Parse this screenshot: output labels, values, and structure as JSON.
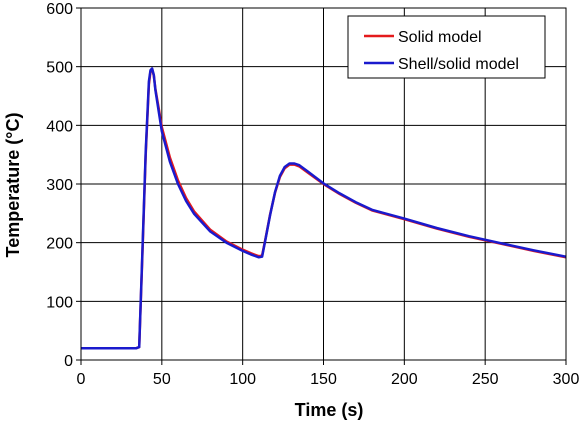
{
  "chart_data": {
    "type": "line",
    "title": "",
    "xlabel": "Time (s)",
    "ylabel": "Temperature (°C)",
    "xlim": [
      0,
      300
    ],
    "ylim": [
      0,
      600
    ],
    "x_ticks": [
      "0",
      "50",
      "100",
      "150",
      "200",
      "250",
      "300"
    ],
    "y_ticks": [
      "0",
      "100",
      "200",
      "300",
      "400",
      "500",
      "600"
    ],
    "grid": true,
    "legend_position": "top-right",
    "series": [
      {
        "name": "Solid model",
        "color": "#e41a1c",
        "x": [
          0,
          34,
          36,
          38,
          40,
          42,
          43,
          44,
          45,
          46,
          48,
          50,
          55,
          60,
          65,
          70,
          80,
          90,
          100,
          105,
          110,
          112,
          114,
          117,
          120,
          123,
          126,
          129,
          132,
          135,
          140,
          150,
          160,
          170,
          180,
          200,
          220,
          240,
          260,
          280,
          300
        ],
        "y": [
          20,
          20,
          22,
          180,
          350,
          470,
          492,
          496,
          485,
          462,
          430,
          397,
          345,
          306,
          276,
          253,
          222,
          202,
          188,
          182,
          177,
          178,
          205,
          248,
          285,
          312,
          327,
          333,
          333,
          330,
          320,
          300,
          283,
          268,
          255,
          240,
          224,
          210,
          198,
          186,
          175
        ]
      },
      {
        "name": "Shell/solid model",
        "color": "#1a1acd",
        "x": [
          0,
          34,
          36,
          38,
          40,
          42,
          43,
          44,
          45,
          46,
          48,
          50,
          55,
          60,
          65,
          70,
          80,
          90,
          100,
          105,
          110,
          112,
          114,
          117,
          120,
          123,
          126,
          129,
          132,
          135,
          140,
          150,
          160,
          170,
          180,
          200,
          220,
          240,
          260,
          280,
          300
        ],
        "y": [
          20,
          20,
          22,
          185,
          355,
          475,
          494,
          497,
          486,
          460,
          425,
          390,
          338,
          300,
          271,
          249,
          219,
          200,
          186,
          180,
          175,
          176,
          204,
          247,
          286,
          314,
          329,
          335,
          335,
          332,
          322,
          301,
          284,
          269,
          256,
          241,
          225,
          211,
          199,
          187,
          176
        ]
      }
    ]
  }
}
